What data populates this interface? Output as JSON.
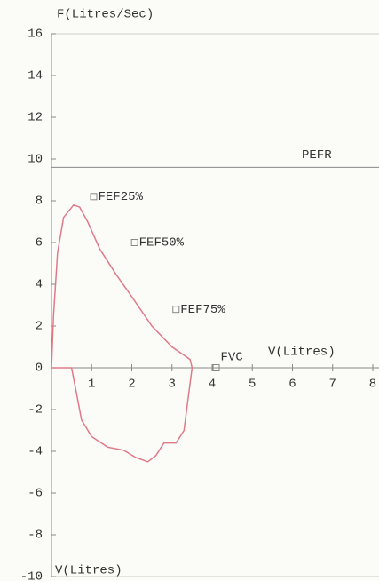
{
  "chart_data": {
    "type": "line",
    "ylabel": "F(Litres/Sec)",
    "xlabel": "V(Litres)",
    "annotations": [
      "V(Litres)"
    ],
    "x": [
      0,
      0.05,
      0.15,
      0.3,
      0.55,
      0.7,
      0.9,
      1.2,
      1.6,
      2.0,
      2.5,
      3.0,
      3.3,
      3.45,
      3.5,
      3.4,
      3.3,
      3.1,
      2.8,
      2.6,
      2.4,
      2.1,
      1.8,
      1.4,
      1.0,
      0.75,
      0.6,
      0.5,
      0
    ],
    "values": [
      0,
      2.5,
      5.5,
      7.2,
      7.8,
      7.7,
      7.0,
      5.7,
      4.5,
      3.4,
      2.0,
      1.0,
      0.6,
      0.4,
      0,
      -1.5,
      -3.0,
      -3.6,
      -3.6,
      -4.2,
      -4.5,
      -4.3,
      -3.95,
      -3.8,
      -3.3,
      -2.5,
      -1.0,
      0,
      0
    ],
    "color": "#e07a88",
    "points": [
      {
        "label": "FEF25%",
        "x": 1.05,
        "y": 8.2
      },
      {
        "label": "FEF50%",
        "x": 2.07,
        "y": 6.0
      },
      {
        "label": "FEF75%",
        "x": 3.1,
        "y": 2.8
      },
      {
        "label": "FVC",
        "x": 4.1,
        "y": 0
      }
    ],
    "reference_lines": [
      {
        "label": "PEFR",
        "y": 9.6
      }
    ],
    "xlim": [
      0,
      8
    ],
    "ylim": [
      -10,
      16
    ],
    "xticks": [
      1,
      2,
      3,
      4,
      5,
      6,
      7,
      8
    ],
    "yticks": [
      -10,
      -8,
      -6,
      -4,
      -2,
      0,
      2,
      4,
      6,
      8,
      10,
      12,
      14,
      16
    ]
  }
}
